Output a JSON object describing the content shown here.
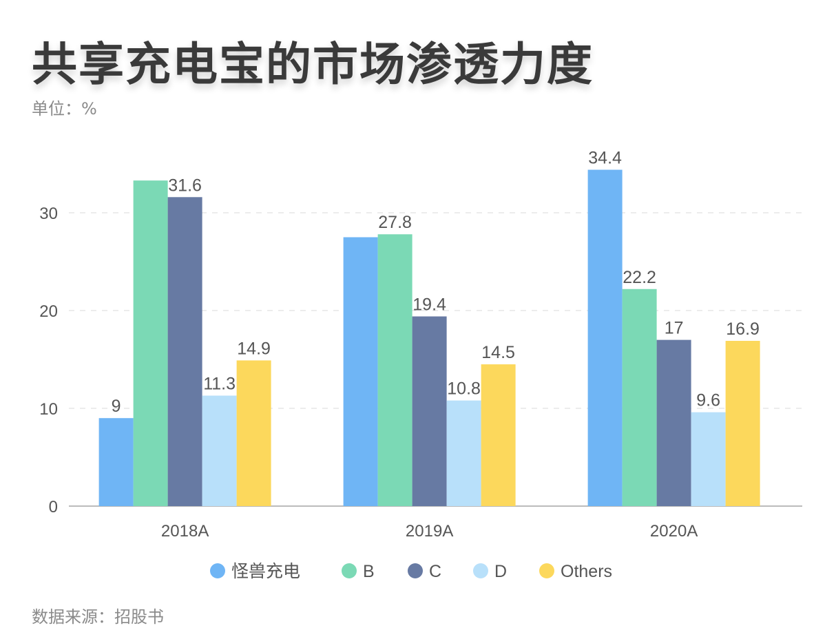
{
  "chart_data": {
    "type": "bar",
    "title": "共享充电宝的市场渗透力度",
    "subtitle": "单位：%",
    "source": "数据来源：招股书",
    "categories": [
      "2018A",
      "2019A",
      "2020A"
    ],
    "ylim": [
      0,
      35
    ],
    "yticks": [
      0,
      10,
      20,
      30
    ],
    "grid": true,
    "legend_position": "bottom",
    "series": [
      {
        "name": "怪兽充电",
        "color": "#6fb5f5",
        "values": [
          9,
          27.5,
          34.4
        ],
        "labels": [
          "9",
          null,
          "34.4"
        ]
      },
      {
        "name": "B",
        "color": "#7bd9b5",
        "values": [
          33.3,
          27.8,
          22.2
        ],
        "labels": [
          null,
          "27.8",
          "22.2"
        ]
      },
      {
        "name": "C",
        "color": "#677aa3",
        "values": [
          31.6,
          19.4,
          17
        ],
        "labels": [
          "31.6",
          "19.4",
          "17"
        ]
      },
      {
        "name": "D",
        "color": "#b8e0fa",
        "values": [
          11.3,
          10.8,
          9.6
        ],
        "labels": [
          "11.3",
          "10.8",
          "9.6"
        ]
      },
      {
        "name": "Others",
        "color": "#fcd85c",
        "values": [
          14.9,
          14.5,
          16.9
        ],
        "labels": [
          "14.9",
          "14.5",
          "16.9"
        ]
      }
    ]
  }
}
